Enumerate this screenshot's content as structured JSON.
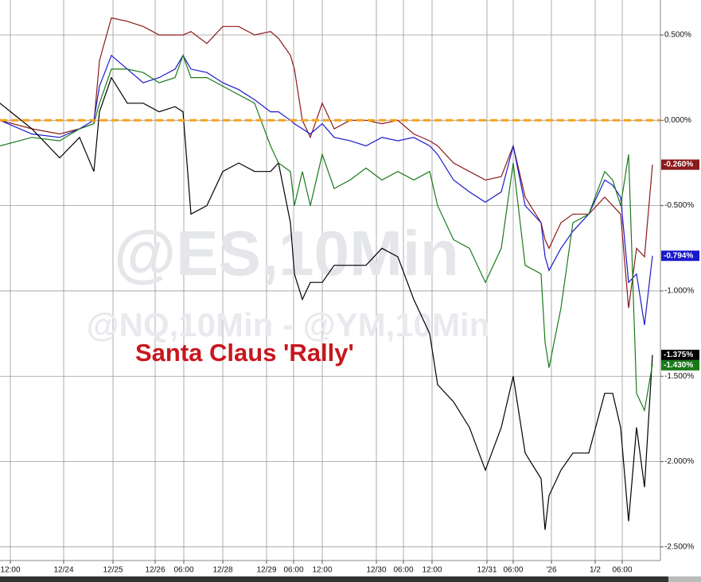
{
  "chart_data": {
    "type": "line",
    "watermarks": [
      "@ES,10Min",
      "@NQ,10Min - @YM,10Min"
    ],
    "annotation": "Santa Claus 'Rally'",
    "x": [
      0,
      4,
      7.5,
      10,
      11.8,
      12.5,
      14,
      16,
      18,
      20,
      22,
      23,
      24,
      26,
      28,
      30,
      32,
      34,
      35,
      36.5,
      37,
      38,
      39,
      40.5,
      42,
      44,
      46,
      48,
      50,
      52,
      54,
      55,
      57,
      59,
      61,
      63,
      64.5,
      66,
      68,
      68.5,
      69,
      70.5,
      72,
      74,
      76,
      77,
      78,
      79,
      80,
      81,
      82
    ],
    "xlim": [
      0,
      83
    ],
    "xticks": [
      {
        "value": 1.3,
        "label": "12:00"
      },
      {
        "value": 8,
        "label": "12/24"
      },
      {
        "value": 14.2,
        "label": "12/25"
      },
      {
        "value": 19.5,
        "label": "12/26"
      },
      {
        "value": 23.1,
        "label": "06:00"
      },
      {
        "value": 28,
        "label": "12/28"
      },
      {
        "value": 33.5,
        "label": "12/29"
      },
      {
        "value": 36.9,
        "label": "06:00"
      },
      {
        "value": 40.5,
        "label": "12:00"
      },
      {
        "value": 47.3,
        "label": "12/30"
      },
      {
        "value": 50.7,
        "label": "06:00"
      },
      {
        "value": 54.3,
        "label": "12:00"
      },
      {
        "value": 61.2,
        "label": "12/31"
      },
      {
        "value": 64.5,
        "label": "06:00"
      },
      {
        "value": 69.3,
        "label": "'26"
      },
      {
        "value": 74.8,
        "label": "1/2"
      },
      {
        "value": 78.2,
        "label": "06:00"
      }
    ],
    "ylim": [
      -2.58,
      0.705
    ],
    "yticks": [
      {
        "value": 0.5,
        "label": "0.500%"
      },
      {
        "value": 0,
        "label": "0.000%"
      },
      {
        "value": -0.5,
        "label": "-0.500%"
      },
      {
        "value": -1,
        "label": "-1.000%"
      },
      {
        "value": -1.5,
        "label": "-1.500%"
      },
      {
        "value": -2,
        "label": "-2.000%"
      },
      {
        "value": -2.5,
        "label": "-2.500%"
      }
    ],
    "grid": true,
    "reference_line": {
      "value": 0,
      "color": "#f7a21b"
    },
    "series": [
      {
        "color": "#8b1a1a",
        "last_value_label": "-0.260%",
        "values": [
          0,
          -0.05,
          -0.08,
          -0.05,
          -0.02,
          0.35,
          0.6,
          0.58,
          0.55,
          0.5,
          0.5,
          0.5,
          0.52,
          0.45,
          0.55,
          0.55,
          0.5,
          0.52,
          0.48,
          0.38,
          0.3,
          0.0,
          -0.1,
          0.1,
          -0.05,
          0.0,
          0.0,
          -0.02,
          0.0,
          -0.08,
          -0.12,
          -0.15,
          -0.25,
          -0.3,
          -0.35,
          -0.33,
          -0.15,
          -0.45,
          -0.6,
          -0.7,
          -0.75,
          -0.6,
          -0.55,
          -0.55,
          -0.45,
          -0.5,
          -0.55,
          -1.1,
          -0.75,
          -0.8,
          -0.26
        ]
      },
      {
        "color": "#1a1acc",
        "last_value_label": "-0.794%",
        "values": [
          0.0,
          -0.08,
          -0.1,
          -0.05,
          0.0,
          0.2,
          0.38,
          0.3,
          0.22,
          0.25,
          0.3,
          0.38,
          0.3,
          0.28,
          0.22,
          0.18,
          0.12,
          0.05,
          0.05,
          0.0,
          -0.02,
          -0.05,
          -0.08,
          -0.02,
          -0.1,
          -0.12,
          -0.15,
          -0.1,
          -0.12,
          -0.1,
          -0.15,
          -0.2,
          -0.35,
          -0.42,
          -0.48,
          -0.42,
          -0.15,
          -0.5,
          -0.6,
          -0.8,
          -0.88,
          -0.75,
          -0.65,
          -0.55,
          -0.35,
          -0.38,
          -0.45,
          -0.95,
          -0.9,
          -1.2,
          -0.794
        ]
      },
      {
        "color": "#000000",
        "last_value_label": "-1.375%",
        "values": [
          0.1,
          -0.05,
          -0.22,
          -0.1,
          -0.3,
          0.05,
          0.25,
          0.1,
          0.1,
          0.05,
          0.08,
          0.05,
          -0.55,
          -0.5,
          -0.3,
          -0.25,
          -0.3,
          -0.3,
          -0.25,
          -0.6,
          -0.9,
          -1.05,
          -0.95,
          -0.95,
          -0.85,
          -0.85,
          -0.85,
          -0.75,
          -0.8,
          -1.05,
          -1.25,
          -1.55,
          -1.65,
          -1.8,
          -2.05,
          -1.8,
          -1.5,
          -1.95,
          -2.1,
          -2.4,
          -2.2,
          -2.05,
          -1.95,
          -1.95,
          -1.6,
          -1.6,
          -1.8,
          -2.35,
          -1.8,
          -2.15,
          -1.375
        ]
      },
      {
        "color": "#1a7a1a",
        "last_value_label": "-1.430%",
        "values": [
          -0.15,
          -0.1,
          -0.12,
          -0.05,
          -0.02,
          0.1,
          0.3,
          0.3,
          0.28,
          0.22,
          0.25,
          0.38,
          0.25,
          0.25,
          0.2,
          0.15,
          0.1,
          -0.15,
          -0.25,
          -0.3,
          -0.5,
          -0.3,
          -0.5,
          -0.2,
          -0.4,
          -0.35,
          -0.28,
          -0.35,
          -0.3,
          -0.35,
          -0.3,
          -0.5,
          -0.7,
          -0.75,
          -0.95,
          -0.75,
          -0.25,
          -0.85,
          -0.9,
          -1.3,
          -1.45,
          -1.1,
          -0.6,
          -0.55,
          -0.3,
          -0.35,
          -0.5,
          -0.2,
          -1.6,
          -1.7,
          -1.43
        ]
      }
    ]
  }
}
